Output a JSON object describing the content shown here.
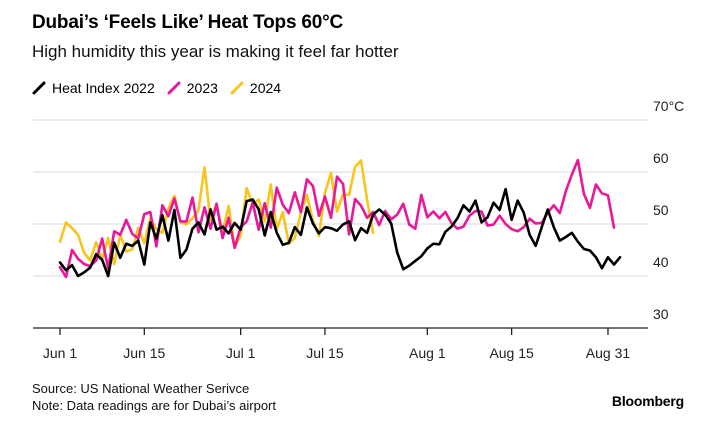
{
  "title": "Dubai’s ‘Feels Like’ Heat Tops 60°C",
  "subtitle": "High humidity this year is making it feel far hotter",
  "legend": [
    {
      "label": "Heat Index 2022",
      "color": "#000000",
      "icon": "diagonal-line"
    },
    {
      "label": "2023",
      "color": "#e8189a",
      "icon": "diagonal-line"
    },
    {
      "label": "2024",
      "color": "#f7c51e",
      "icon": "diagonal-line"
    }
  ],
  "footer": {
    "source": "Source: US National Weather Serivce",
    "note": "Note: Data readings are for Dubai’s airport"
  },
  "brand": "Bloomberg",
  "chart_data": {
    "type": "line",
    "title": "Dubai’s ‘Feels Like’ Heat Tops 60°C",
    "subtitle": "High humidity this year is making it feel far hotter",
    "xlabel": "",
    "ylabel": "",
    "y_unit": "°C",
    "ylim": [
      30,
      70
    ],
    "y_ticks": [
      30,
      40,
      50,
      60,
      70
    ],
    "y_tick_labels": [
      "30",
      "40",
      "50",
      "60",
      "70°C"
    ],
    "x_range": [
      "Jun 1",
      "Aug 31"
    ],
    "x_ticks": [
      "Jun 1",
      "Jun 15",
      "Jul 1",
      "Jul 15",
      "Aug 1",
      "Aug 15",
      "Aug 31"
    ],
    "grid": true,
    "legend_position": "top-left",
    "series": [
      {
        "name": "2024",
        "color": "#f7c51e",
        "values": [
          46.6,
          50.3,
          49.2,
          47.9,
          44.5,
          43,
          46.5,
          43.2,
          47.3,
          42.3,
          47.9,
          44.7,
          45.1,
          49.3,
          46.3,
          51.1,
          49,
          48.3,
          53,
          55.4,
          50.4,
          49.9,
          51.1,
          52.7,
          60.9,
          50.7,
          53.8,
          48.5,
          53.5,
          45.5,
          47.8,
          56.9,
          53.8,
          54.7,
          50.5,
          57.6,
          49,
          52.3,
          46.2,
          47.3,
          52.2,
          55.6,
          50.6,
          47.7,
          56,
          59.8,
          52.4,
          55.7,
          55.6,
          61,
          62.2,
          54.6,
          48.3
        ]
      },
      {
        "name": "2023",
        "color": "#e8189a",
        "values": [
          41.7,
          39.8,
          45,
          43.3,
          42.3,
          41.9,
          43,
          47.2,
          41.4,
          48.6,
          47.9,
          50.8,
          48.1,
          47.2,
          51.9,
          52.3,
          45.7,
          53.6,
          51.5,
          54.9,
          50.5,
          50.5,
          55.1,
          48.4,
          53.2,
          49.1,
          53.9,
          47.3,
          51.2,
          45.4,
          49.4,
          50.5,
          54.1,
          48.9,
          54,
          49.3,
          57,
          53.7,
          52.1,
          56.1,
          52.3,
          58.6,
          57.3,
          51.6,
          55.3,
          51.2,
          59.1,
          57.7,
          48,
          54.8,
          53.5,
          51.2,
          52.3,
          49.8,
          52.5,
          50.9,
          51.8,
          53.9,
          49.9,
          49.1,
          55.6,
          51.3,
          52.4,
          51.1,
          52.3,
          50.2,
          49.1,
          49.5,
          51.6,
          52.5,
          52.4,
          49.7,
          49.9,
          51.6,
          50,
          49,
          48.6,
          49.4,
          51,
          50.1,
          50.2,
          52.2,
          53.6,
          52.1,
          56.3,
          59.5,
          62.3,
          55.8,
          53.1,
          57.6,
          55.9,
          55.5,
          49.3
        ]
      },
      {
        "name": "Heat Index 2022",
        "color": "#000000",
        "values": [
          42.6,
          41.1,
          42.1,
          40,
          40.7,
          41.6,
          44.2,
          43.1,
          40,
          46.4,
          43.5,
          46.2,
          45.8,
          46.8,
          42.2,
          50.3,
          47.2,
          51.7,
          46.8,
          52.7,
          43.5,
          45.1,
          49.1,
          50.3,
          48,
          52.8,
          48.9,
          49.5,
          48.2,
          50.2,
          48.9,
          54.4,
          54.7,
          52.8,
          47.8,
          52.3,
          48.3,
          46,
          46.4,
          49.4,
          47.9,
          53.2,
          50.1,
          48.2,
          49.4,
          49.2,
          48.7,
          49.9,
          50.5,
          46.9,
          49.2,
          48.3,
          51.8,
          52.8,
          51.8,
          50.1,
          44.5,
          41.3,
          42,
          42.9,
          43.8,
          45.3,
          46.2,
          46.1,
          48.5,
          49.5,
          51.1,
          53.6,
          52.4,
          54.5,
          50.3,
          51.3,
          54.1,
          52.7,
          56.7,
          50.8,
          54.5,
          52.2,
          47.9,
          45.8,
          49.4,
          52.8,
          49.4,
          46.8,
          47.5,
          48.3,
          46.6,
          45.2,
          44.9,
          43.6,
          41.5,
          43.6,
          42.2,
          43.6
        ]
      }
    ]
  }
}
